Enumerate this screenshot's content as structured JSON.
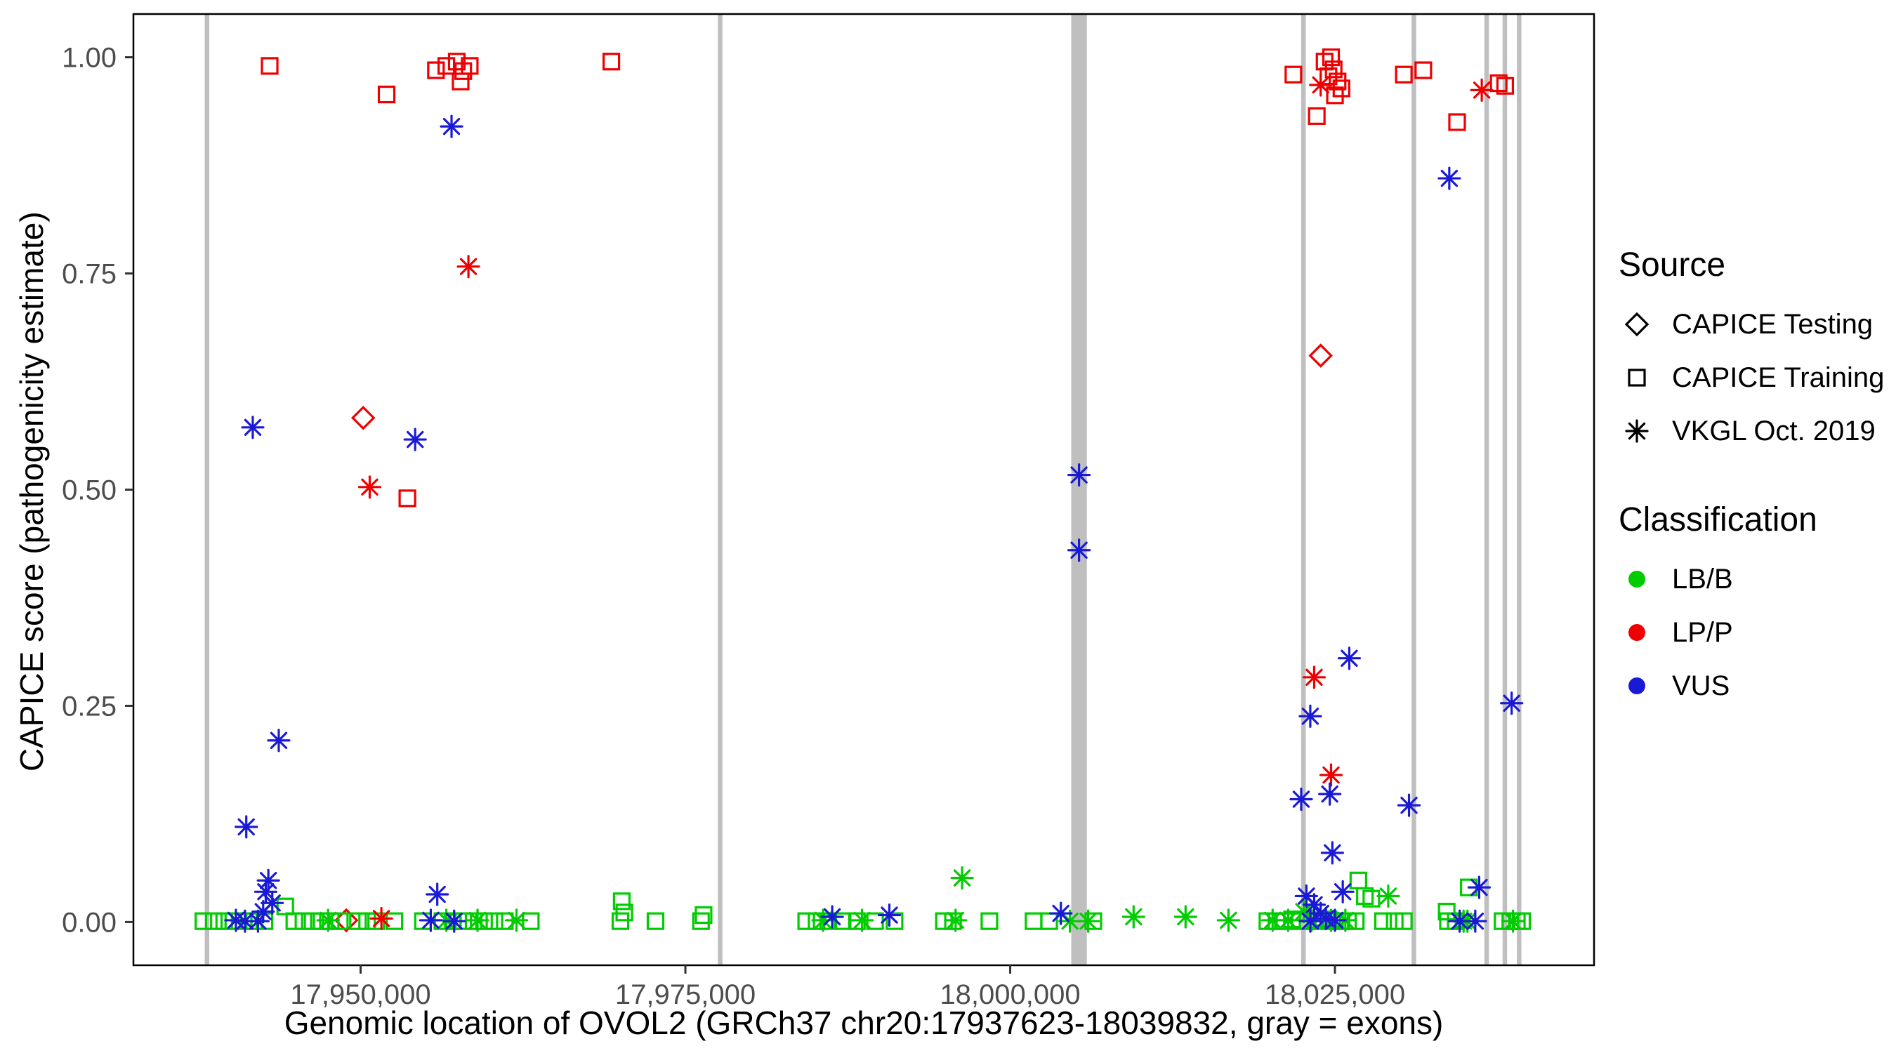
{
  "legend": {
    "source": {
      "title": "Source",
      "items": [
        {
          "label": "CAPICE Testing",
          "shape": "diamond",
          "color": "#000000"
        },
        {
          "label": "CAPICE Training",
          "shape": "square",
          "color": "#000000"
        },
        {
          "label": "VKGL Oct. 2019",
          "shape": "asterisk",
          "color": "#000000"
        }
      ]
    },
    "classification": {
      "title": "Classification",
      "items": [
        {
          "label": "LB/B",
          "shape": "circle",
          "color": "#00CC00"
        },
        {
          "label": "LP/P",
          "shape": "circle",
          "color": "#EE0000"
        },
        {
          "label": "VUS",
          "shape": "circle",
          "color": "#1A1AD6"
        }
      ]
    }
  },
  "chart_data": {
    "type": "scatter",
    "title": "",
    "xlabel": "Genomic location of OVOL2 (GRCh37 chr20:17937623-18039832, gray = exons)",
    "ylabel": "CAPICE score (pathogenicity estimate)",
    "xlim": [
      17932513,
      18044942
    ],
    "ylim": [
      -0.05,
      1.05
    ],
    "xticks": [
      {
        "v": 17950000,
        "label": "17,950,000"
      },
      {
        "v": 17975000,
        "label": "17,975,000"
      },
      {
        "v": 18000000,
        "label": "18,000,000"
      },
      {
        "v": 18025000,
        "label": "18,025,000"
      }
    ],
    "yticks": [
      {
        "v": 0.0,
        "label": "0.00"
      },
      {
        "v": 0.25,
        "label": "0.25"
      },
      {
        "v": 0.5,
        "label": "0.50"
      },
      {
        "v": 0.75,
        "label": "0.75"
      },
      {
        "v": 1.0,
        "label": "1.00"
      }
    ],
    "exon_color": "#BFBFBF",
    "exons": [
      [
        17938000,
        17938350
      ],
      [
        17977500,
        17977850
      ],
      [
        18004700,
        18005900
      ],
      [
        18022400,
        18022750
      ],
      [
        18030900,
        18031250
      ],
      [
        18036500,
        18036850
      ],
      [
        18037900,
        18038250
      ],
      [
        18039000,
        18039350
      ]
    ],
    "colors": {
      "LB/B": "#00CC00",
      "LP/P": "#EE0000",
      "VUS": "#1A1AD6"
    },
    "shapes": {
      "CAPICE Testing": "diamond",
      "CAPICE Training": "square",
      "VKGL Oct. 2019": "asterisk"
    },
    "series": [
      {
        "source": "CAPICE Testing",
        "classification": "LP/P",
        "shape": "diamond",
        "color": "#EE0000",
        "points": [
          [
            17950200,
            0.583
          ],
          [
            18023900,
            0.655
          ],
          [
            17948900,
            0.002
          ]
        ]
      },
      {
        "source": "CAPICE Training",
        "classification": "LP/P",
        "shape": "square",
        "color": "#EE0000",
        "points": [
          [
            17943000,
            0.99
          ],
          [
            17952000,
            0.957
          ],
          [
            17955800,
            0.985
          ],
          [
            17956600,
            0.99
          ],
          [
            17957400,
            0.995
          ],
          [
            17957900,
            0.984
          ],
          [
            17958400,
            0.99
          ],
          [
            17957700,
            0.972
          ],
          [
            17969300,
            0.995
          ],
          [
            17953600,
            0.49
          ],
          [
            18021800,
            0.98
          ],
          [
            18023600,
            0.932
          ],
          [
            18024200,
            0.995
          ],
          [
            18024700,
            1.0
          ],
          [
            18024500,
            0.978
          ],
          [
            18025200,
            0.972
          ],
          [
            18025500,
            0.964
          ],
          [
            18024900,
            0.986
          ],
          [
            18025000,
            0.956
          ],
          [
            18030300,
            0.98
          ],
          [
            18031800,
            0.985
          ],
          [
            18034400,
            0.925
          ],
          [
            18037600,
            0.97
          ],
          [
            18038100,
            0.967
          ]
        ]
      },
      {
        "source": "CAPICE Training",
        "classification": "LB/B",
        "shape": "square",
        "color": "#00CC00",
        "points": [
          [
            17937900,
            0.001
          ],
          [
            17938700,
            0.001
          ],
          [
            17939500,
            0.001
          ],
          [
            17940200,
            0.001
          ],
          [
            17941000,
            0.001
          ],
          [
            17941800,
            0.001
          ],
          [
            17942600,
            0.001
          ],
          [
            17944200,
            0.018
          ],
          [
            17944900,
            0.001
          ],
          [
            17945600,
            0.001
          ],
          [
            17946300,
            0.001
          ],
          [
            17947000,
            0.001
          ],
          [
            17947700,
            0.001
          ],
          [
            17948400,
            0.001
          ],
          [
            17949800,
            0.001
          ],
          [
            17950500,
            0.001
          ],
          [
            17951200,
            0.001
          ],
          [
            17952600,
            0.001
          ],
          [
            17954800,
            0.001
          ],
          [
            17956300,
            0.001
          ],
          [
            17957100,
            0.001
          ],
          [
            17957900,
            0.001
          ],
          [
            17958700,
            0.001
          ],
          [
            17959500,
            0.001
          ],
          [
            17960300,
            0.001
          ],
          [
            17961100,
            0.001
          ],
          [
            17963100,
            0.001
          ],
          [
            17970100,
            0.024
          ],
          [
            17970300,
            0.011
          ],
          [
            17970000,
            0.001
          ],
          [
            17972700,
            0.001
          ],
          [
            17976400,
            0.008
          ],
          [
            17976200,
            0.001
          ],
          [
            17984300,
            0.001
          ],
          [
            17985100,
            0.001
          ],
          [
            17986000,
            0.001
          ],
          [
            17987100,
            0.001
          ],
          [
            17988200,
            0.001
          ],
          [
            17989600,
            0.001
          ],
          [
            17991100,
            0.001
          ],
          [
            17994900,
            0.001
          ],
          [
            17995600,
            0.001
          ],
          [
            17998400,
            0.001
          ],
          [
            18001800,
            0.001
          ],
          [
            18003000,
            0.001
          ],
          [
            18006400,
            0.001
          ],
          [
            18019800,
            0.001
          ],
          [
            18020500,
            0.001
          ],
          [
            18021100,
            0.001
          ],
          [
            18021700,
            0.003
          ],
          [
            18022300,
            0.001
          ],
          [
            18022900,
            0.001
          ],
          [
            18023500,
            0.002
          ],
          [
            18024000,
            0.001
          ],
          [
            18024500,
            0.003
          ],
          [
            18025000,
            0.001
          ],
          [
            18025500,
            0.001
          ],
          [
            18026000,
            0.001
          ],
          [
            18026600,
            0.001
          ],
          [
            18026800,
            0.048
          ],
          [
            18027300,
            0.03
          ],
          [
            18027800,
            0.027
          ],
          [
            18028700,
            0.001
          ],
          [
            18029600,
            0.001
          ],
          [
            18030300,
            0.001
          ],
          [
            18035300,
            0.04
          ],
          [
            18033600,
            0.012
          ],
          [
            18033700,
            0.001
          ],
          [
            18034300,
            0.001
          ],
          [
            18037900,
            0.001
          ],
          [
            18038500,
            0.001
          ],
          [
            18039000,
            0.001
          ],
          [
            18039400,
            0.001
          ]
        ]
      },
      {
        "source": "VKGL Oct. 2019",
        "classification": "LB/B",
        "shape": "asterisk",
        "color": "#00CC00",
        "points": [
          [
            17947500,
            0.002
          ],
          [
            17956600,
            0.002
          ],
          [
            17959000,
            0.002
          ],
          [
            17962000,
            0.002
          ],
          [
            17985600,
            0.002
          ],
          [
            17988600,
            0.002
          ],
          [
            17996300,
            0.051
          ],
          [
            17995800,
            0.002
          ],
          [
            18004600,
            0.001
          ],
          [
            18006000,
            0.001
          ],
          [
            18009500,
            0.006
          ],
          [
            18013500,
            0.006
          ],
          [
            18016800,
            0.002
          ],
          [
            18020200,
            0.002
          ],
          [
            18021400,
            0.002
          ],
          [
            18022600,
            0.012
          ],
          [
            18023200,
            0.002
          ],
          [
            18024700,
            0.002
          ],
          [
            18025800,
            0.002
          ],
          [
            18029100,
            0.03
          ],
          [
            18035200,
            0.001
          ],
          [
            18034900,
            0.001
          ],
          [
            18038700,
            0.001
          ]
        ]
      },
      {
        "source": "VKGL Oct. 2019",
        "classification": "LP/P",
        "shape": "asterisk",
        "color": "#EE0000",
        "points": [
          [
            17958300,
            0.758
          ],
          [
            17950700,
            0.503
          ],
          [
            17951600,
            0.004
          ],
          [
            18023400,
            0.283
          ],
          [
            18024700,
            0.17
          ],
          [
            18023900,
            0.968
          ],
          [
            18036300,
            0.962
          ]
        ]
      },
      {
        "source": "VKGL Oct. 2019",
        "classification": "VUS",
        "shape": "asterisk",
        "color": "#1A1AD6",
        "points": [
          [
            17957000,
            0.92
          ],
          [
            17941700,
            0.572
          ],
          [
            17954200,
            0.558
          ],
          [
            17943700,
            0.21
          ],
          [
            17941200,
            0.11
          ],
          [
            17942900,
            0.048
          ],
          [
            17942700,
            0.035
          ],
          [
            17943200,
            0.022
          ],
          [
            17942500,
            0.012
          ],
          [
            17940400,
            0.002
          ],
          [
            17941100,
            0.001
          ],
          [
            17942100,
            0.001
          ],
          [
            17955900,
            0.032
          ],
          [
            17955400,
            0.002
          ],
          [
            17957200,
            0.001
          ],
          [
            17986300,
            0.006
          ],
          [
            17990700,
            0.008
          ],
          [
            18003900,
            0.01
          ],
          [
            18005300,
            0.517
          ],
          [
            18005300,
            0.43
          ],
          [
            18023100,
            0.238
          ],
          [
            18026100,
            0.305
          ],
          [
            18022400,
            0.142
          ],
          [
            18024600,
            0.148
          ],
          [
            18024800,
            0.08
          ],
          [
            18030700,
            0.135
          ],
          [
            18022800,
            0.03
          ],
          [
            18023400,
            0.02
          ],
          [
            18023900,
            0.01
          ],
          [
            18024300,
            0.004
          ],
          [
            18023100,
            0.001
          ],
          [
            18025000,
            0.002
          ],
          [
            18025600,
            0.035
          ],
          [
            18033800,
            0.86
          ],
          [
            18036100,
            0.04
          ],
          [
            18038600,
            0.253
          ],
          [
            18034600,
            0.001
          ],
          [
            18035800,
            0.001
          ]
        ]
      }
    ]
  }
}
